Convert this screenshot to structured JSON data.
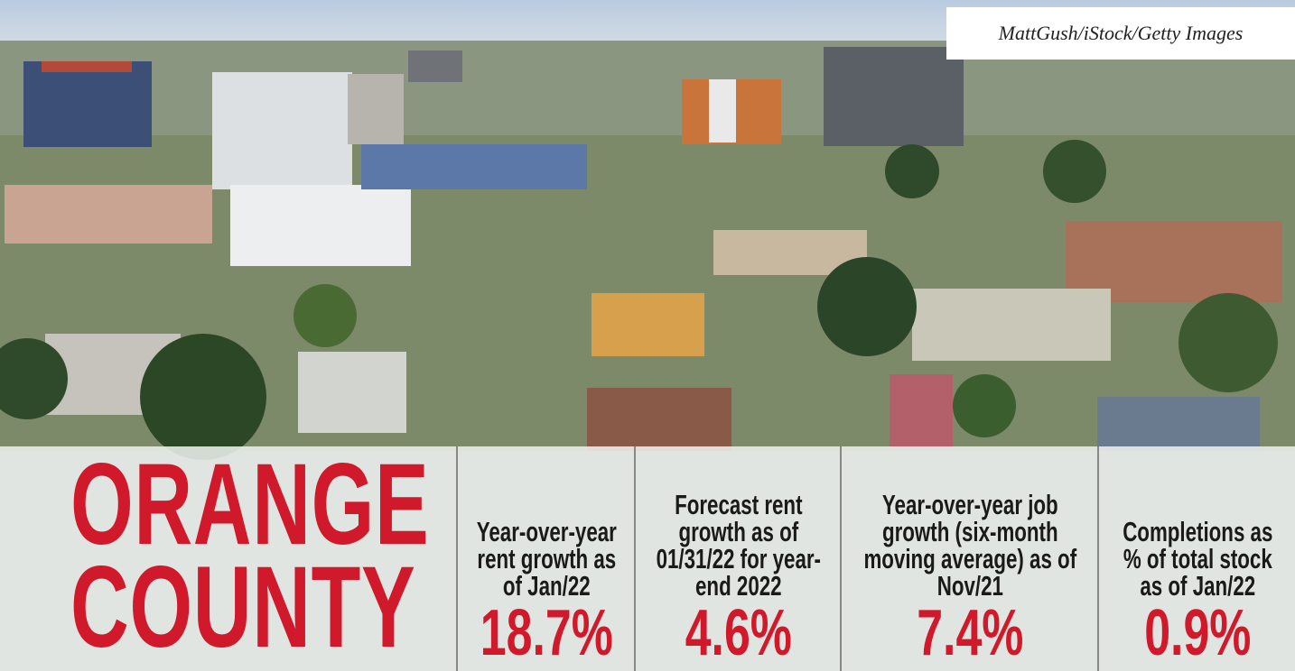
{
  "credit": "MattGush/iStock/Getty Images",
  "title": [
    "ORANGE",
    "COUNTY"
  ],
  "stats": [
    {
      "label": "Year-over-year rent growth as of Jan/22",
      "value": "18.7%"
    },
    {
      "label": "Forecast rent growth as of 01/31/22 for year-end 2022",
      "value": "4.6%"
    },
    {
      "label": "Year-over-year job growth (six-month moving average) as of Nov/21",
      "value": "7.4%"
    },
    {
      "label": "Completions as % of total stock as of Jan/22",
      "value": "0.9%"
    }
  ]
}
